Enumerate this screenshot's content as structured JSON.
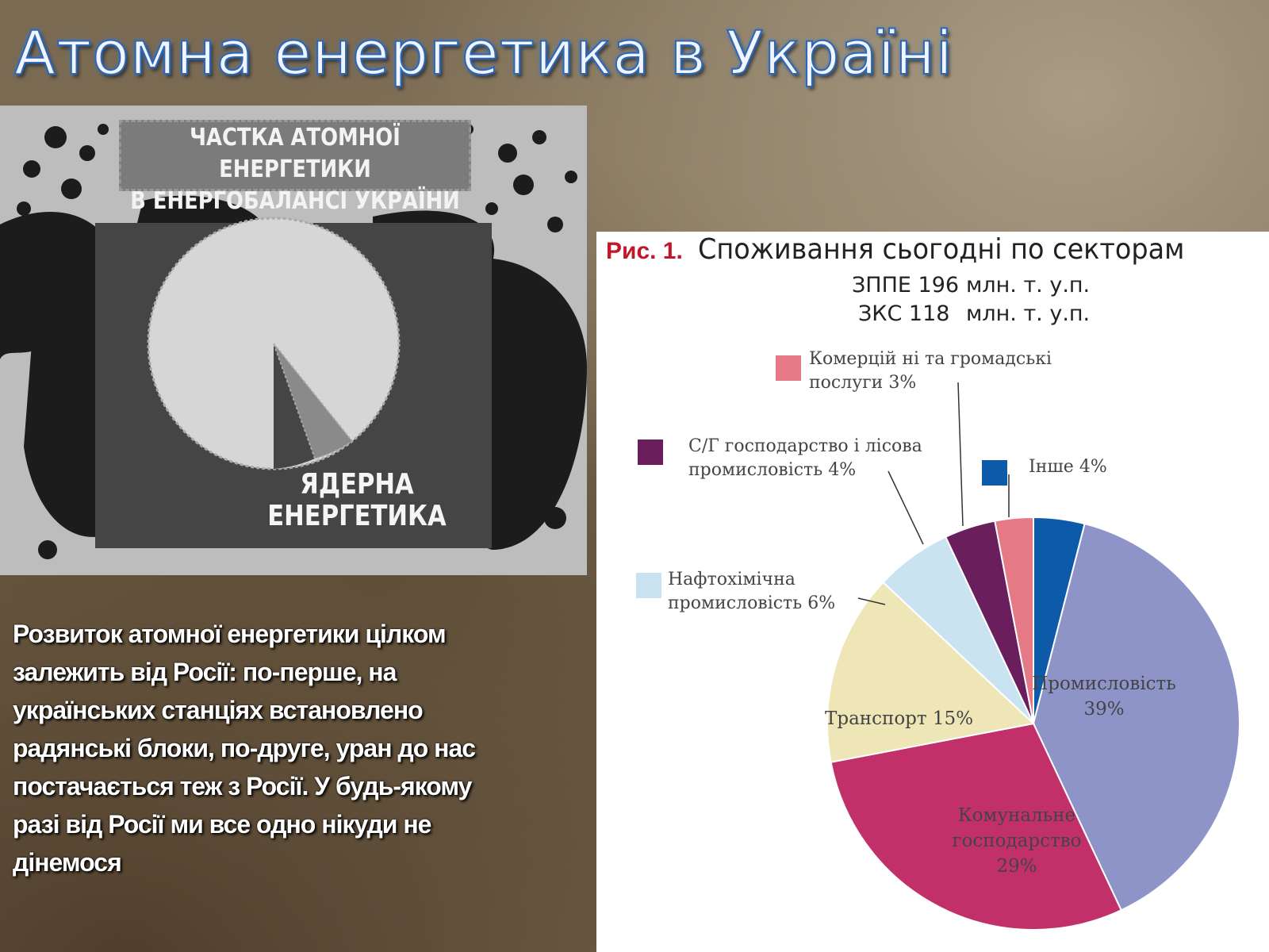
{
  "title": "Атомна енергетика в Україні",
  "poster": {
    "caption_line1": "ЧАСТКА АТОМНОЇ ЕНЕРГЕТИКИ",
    "caption_line2": "В ЕНЕРГОБАЛАНСІ УКРАЇНИ",
    "label_line1": "ЯДЕРНА",
    "label_line2": "ЕНЕРГЕТИКА"
  },
  "body_text": "Розвиток атомної енергетики цілком залежить від Росії: по-перше, на українських станціях встановлено радянські блоки, по-друге, уран до нас постачається теж з Росії. У будь-якому разі від Росії ми все одно нікуди не дінемося",
  "chart": {
    "fig_label": "Рис. 1.",
    "title": "Споживання сьогодні по секторам",
    "stat1_label": "ЗППЕ 196",
    "stat1_unit": "млн. т. у.п.",
    "stat2_label": "ЗКС  118",
    "stat2_unit": "млн. т. у.п."
  },
  "chart_data": {
    "type": "pie",
    "title": "Споживання сьогодні по секторам",
    "slices": [
      {
        "label": "Інше 4%",
        "value": 4,
        "color": "#0d5aa8",
        "text_lines": [
          "Інше 4%"
        ]
      },
      {
        "label": "Промисловість 39%",
        "value": 39,
        "color": "#8e94c8",
        "text_lines": [
          "Промисловість",
          "39%"
        ]
      },
      {
        "label": "Комунальне господарство 29%",
        "value": 29,
        "color": "#c2306a",
        "text_lines": [
          "Комунальне",
          "господарство",
          "29%"
        ]
      },
      {
        "label": "Транспорт 15%",
        "value": 15,
        "color": "#efe6b8",
        "text_lines": [
          "Транспорт 15%"
        ]
      },
      {
        "label": "Нафтохімічна промисловість 6%",
        "value": 6,
        "color": "#c9e3f0",
        "text_lines": [
          "Нафтохімічна",
          "промисловість 6%"
        ]
      },
      {
        "label": "С/Г господарство і лісова промисловість 4%",
        "value": 4,
        "color": "#6a1f5c",
        "text_lines": [
          "С/Г господарство і лісова",
          "промисловість  4%"
        ]
      },
      {
        "label": "Комерційні та громадські послуги 3%",
        "value": 3,
        "color": "#e57a86",
        "text_lines": [
          "Комерцій ні та громадські",
          "послуги 3%"
        ]
      }
    ]
  }
}
